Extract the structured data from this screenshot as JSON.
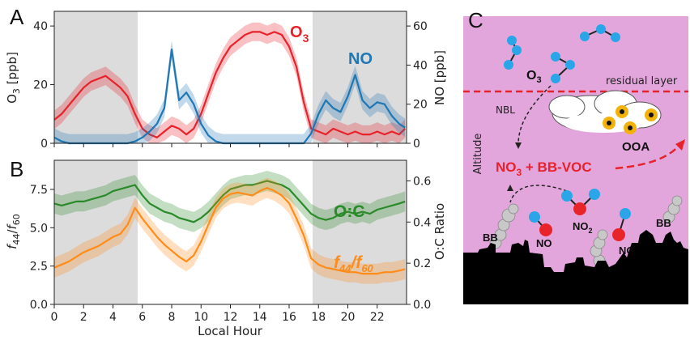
{
  "panel_labels": {
    "a": "A",
    "b": "B",
    "c": "C"
  },
  "chart_data": [
    {
      "type": "line",
      "panel": "A",
      "x_axis": {
        "range": [
          0,
          24
        ],
        "ticks": [
          0,
          2,
          4,
          6,
          8,
          10,
          12,
          14,
          16,
          18,
          20,
          22
        ],
        "ticklabels": [
          "0",
          "2",
          "4",
          "6",
          "8",
          "10",
          "12",
          "14",
          "16",
          "18",
          "20",
          "22"
        ],
        "shared_label": "Local Hour"
      },
      "y_left": {
        "label_parts": [
          "O",
          "3",
          " [ppb]"
        ],
        "ylim": [
          0,
          45
        ],
        "ticks": [
          0,
          20,
          40
        ],
        "ticklabels": [
          "0",
          "20",
          "40"
        ]
      },
      "y_right": {
        "label": "NO [ppb]",
        "ylim": [
          0,
          67.5
        ],
        "ticks": [
          0,
          20,
          40,
          60
        ],
        "ticklabels": [
          "0",
          "20",
          "40",
          "60"
        ]
      },
      "night_shading": [
        [
          0,
          5.5
        ],
        [
          17.5,
          24
        ]
      ],
      "grid": false,
      "annotations": [
        {
          "text_parts": [
            "O",
            "3"
          ],
          "color": "#e8222a",
          "series": "O3"
        },
        {
          "text": "NO",
          "color": "#1f77b4",
          "series": "NO"
        }
      ],
      "series": [
        {
          "name": "O3",
          "axis": "left",
          "color": "#e8222a",
          "x": [
            0,
            0.5,
            1,
            1.5,
            2,
            2.5,
            3,
            3.5,
            4,
            4.5,
            5,
            5.5,
            6,
            6.5,
            7,
            7.5,
            8,
            8.5,
            9,
            9.5,
            10,
            10.5,
            11,
            11.5,
            12,
            12.5,
            13,
            13.5,
            14,
            14.5,
            15,
            15.5,
            16,
            16.5,
            17,
            17.5,
            18,
            18.5,
            19,
            19.5,
            20,
            20.5,
            21,
            21.5,
            22,
            22.5,
            23,
            23.5,
            23.9
          ],
          "values": [
            8,
            10,
            13,
            16,
            19,
            21,
            22,
            23,
            21,
            19,
            16,
            10,
            5,
            3,
            2,
            4,
            6,
            5,
            3,
            5,
            10,
            17,
            24,
            29,
            33,
            35,
            37,
            38,
            38,
            37,
            38,
            37,
            33,
            26,
            14,
            5,
            4,
            3,
            5,
            4,
            3,
            4,
            3,
            3,
            4,
            3,
            4,
            3,
            5
          ]
        },
        {
          "name": "NO",
          "axis": "right",
          "color": "#1f77b4",
          "x": [
            0,
            0.5,
            1,
            1.5,
            2,
            2.5,
            3,
            3.5,
            4,
            4.5,
            5,
            5.5,
            6,
            6.5,
            7,
            7.5,
            8,
            8.5,
            9,
            9.5,
            10,
            10.5,
            11,
            11.5,
            12,
            12.5,
            13,
            13.5,
            14,
            14.5,
            15,
            15.5,
            16,
            16.5,
            17,
            17.5,
            18,
            18.5,
            19,
            19.5,
            20,
            20.5,
            21,
            21.5,
            22,
            22.5,
            23,
            23.5,
            23.9
          ],
          "values": [
            3,
            1,
            0,
            0,
            0,
            0,
            0,
            0,
            0,
            0,
            0,
            1,
            3,
            6,
            10,
            18,
            48,
            22,
            26,
            20,
            10,
            4,
            1,
            0,
            0,
            0,
            0,
            0,
            0,
            0,
            0,
            0,
            0,
            0,
            0,
            5,
            15,
            22,
            18,
            16,
            24,
            35,
            22,
            18,
            21,
            20,
            14,
            10,
            8
          ]
        }
      ]
    },
    {
      "type": "line",
      "panel": "B",
      "x_axis": {
        "range": [
          0,
          24
        ],
        "ticks": [
          0,
          2,
          4,
          6,
          8,
          10,
          12,
          14,
          16,
          18,
          20,
          22
        ],
        "ticklabels": [
          "0",
          "2",
          "4",
          "6",
          "8",
          "10",
          "12",
          "14",
          "16",
          "18",
          "20",
          "22"
        ],
        "label": "Local Hour"
      },
      "y_left": {
        "label_parts": [
          "f",
          "44",
          "/",
          "f",
          "60"
        ],
        "ylim": [
          0,
          9.4
        ],
        "ticks": [
          0,
          2.5,
          5,
          7.5
        ],
        "ticklabels": [
          "0.0",
          "2.5",
          "5.0",
          "7.5"
        ]
      },
      "y_right": {
        "label": "O:C Ratio",
        "ylim": [
          0,
          0.7
        ],
        "ticks": [
          0,
          0.2,
          0.4,
          0.6
        ],
        "ticklabels": [
          "0.0",
          "0.2",
          "0.4",
          "0.6"
        ]
      },
      "night_shading": [
        [
          0,
          5.5
        ],
        [
          17.5,
          24
        ]
      ],
      "grid": false,
      "annotations": [
        {
          "text": "O:C",
          "color": "#2a8a2a",
          "series": "O:C"
        },
        {
          "text_parts": [
            "f",
            "44",
            "/",
            "f",
            "60"
          ],
          "color": "#ff8c1a",
          "series": "f44/f60"
        }
      ],
      "series": [
        {
          "name": "O:C",
          "axis": "right",
          "color": "#2a8a2a",
          "x": [
            0,
            0.5,
            1,
            1.5,
            2,
            2.5,
            3,
            3.5,
            4,
            4.5,
            5,
            5.5,
            6,
            6.5,
            7,
            7.5,
            8,
            8.5,
            9,
            9.5,
            10,
            10.5,
            11,
            11.5,
            12,
            12.5,
            13,
            13.5,
            14,
            14.5,
            15,
            15.5,
            16,
            16.5,
            17,
            17.5,
            18,
            18.5,
            19,
            19.5,
            20,
            20.5,
            21,
            21.5,
            22,
            22.5,
            23,
            23.5,
            23.9
          ],
          "values": [
            0.49,
            0.48,
            0.49,
            0.5,
            0.5,
            0.51,
            0.52,
            0.53,
            0.55,
            0.56,
            0.57,
            0.58,
            0.53,
            0.49,
            0.47,
            0.45,
            0.44,
            0.42,
            0.41,
            0.4,
            0.42,
            0.45,
            0.49,
            0.53,
            0.56,
            0.57,
            0.58,
            0.58,
            0.59,
            0.6,
            0.59,
            0.58,
            0.56,
            0.52,
            0.48,
            0.44,
            0.42,
            0.41,
            0.42,
            0.44,
            0.45,
            0.44,
            0.45,
            0.44,
            0.46,
            0.47,
            0.48,
            0.49,
            0.5
          ]
        },
        {
          "name": "f44/f60",
          "axis": "left",
          "color": "#ff8c1a",
          "x": [
            0,
            0.5,
            1,
            1.5,
            2,
            2.5,
            3,
            3.5,
            4,
            4.5,
            5,
            5.5,
            6,
            6.5,
            7,
            7.5,
            8,
            8.5,
            9,
            9.5,
            10,
            10.5,
            11,
            11.5,
            12,
            12.5,
            13,
            13.5,
            14,
            14.5,
            15,
            15.5,
            16,
            16.5,
            17,
            17.5,
            18,
            18.5,
            19,
            19.5,
            20,
            20.5,
            21,
            21.5,
            22,
            22.5,
            23,
            23.5,
            23.9
          ],
          "values": [
            2.4,
            2.6,
            2.8,
            3.1,
            3.4,
            3.6,
            3.8,
            4.1,
            4.4,
            4.6,
            5.2,
            6.3,
            5.6,
            5.0,
            4.4,
            3.9,
            3.5,
            3.1,
            2.8,
            3.2,
            4.1,
            5.2,
            6.3,
            6.9,
            7.2,
            7.3,
            7.2,
            7.1,
            7.4,
            7.6,
            7.4,
            7.1,
            6.6,
            5.6,
            4.5,
            3.0,
            2.6,
            2.4,
            2.3,
            2.2,
            2.1,
            2.1,
            2.0,
            2.0,
            2.0,
            2.1,
            2.1,
            2.2,
            2.3
          ]
        }
      ]
    }
  ],
  "schematic": {
    "ozone_label_parts": [
      "O",
      "3"
    ],
    "residual_layer": "residual layer",
    "nbl": "NBL",
    "ooa": "OOA",
    "altitude": "Altitude",
    "reaction_parts": [
      "NO",
      "3",
      " + BB-VOC"
    ],
    "no2_parts": [
      "NO",
      "2"
    ],
    "no_left": "NO",
    "no_right": "NO",
    "bb_left": "BB",
    "bb_right": "BB",
    "colors": {
      "sky": "#e3a6dc",
      "reaction": "#e8222a",
      "boundary": "#e8222a",
      "molecule_blue": "#2aa6e8",
      "molecule_red": "#e8242a",
      "particle": "#f2b20a",
      "skyline": "#000000"
    }
  }
}
